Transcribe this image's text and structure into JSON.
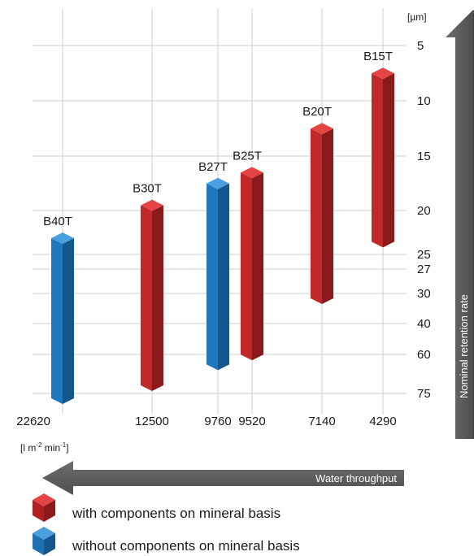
{
  "chart_data": {
    "type": "bar",
    "y_unit": "[µm]",
    "x_unit_base": "[l m",
    "x_unit_sup1": "-2",
    "x_unit_mid": " min",
    "x_unit_sup2": "-1",
    "x_unit_end": "]",
    "y_ticks": [
      "5",
      "10",
      "15",
      "20",
      "25",
      "27",
      "30",
      "40",
      "60",
      "75"
    ],
    "x_ticks": [
      "22620",
      "12500",
      "9760",
      "9520",
      "7140",
      "4290"
    ],
    "y_axis_label": "Nominal retention rate",
    "x_axis_label": "Water throughput",
    "series": [
      {
        "name": "with components on mineral basis",
        "color": "#c0282a"
      },
      {
        "name": "without components on mineral basis",
        "color": "#1f78be"
      }
    ],
    "bars": [
      {
        "label": "B40T",
        "throughput": "22620",
        "retention_top": 22.5,
        "retention_bottom": 75,
        "series": 1
      },
      {
        "label": "B30T",
        "throughput": "12500",
        "retention_top": 19,
        "retention_bottom": 70,
        "series": 0
      },
      {
        "label": "B27T",
        "throughput": "9760",
        "retention_top": 17,
        "retention_bottom": 62,
        "series": 1
      },
      {
        "label": "B25T",
        "throughput": "9520",
        "retention_top": 16,
        "retention_bottom": 57,
        "series": 0
      },
      {
        "label": "B20T",
        "throughput": "7140",
        "retention_top": 12,
        "retention_bottom": 30,
        "series": 0
      },
      {
        "label": "B15T",
        "throughput": "4290",
        "retention_top": 7,
        "retention_bottom": 23,
        "series": 0
      }
    ],
    "grid": true,
    "legend_position": "bottom-left"
  }
}
